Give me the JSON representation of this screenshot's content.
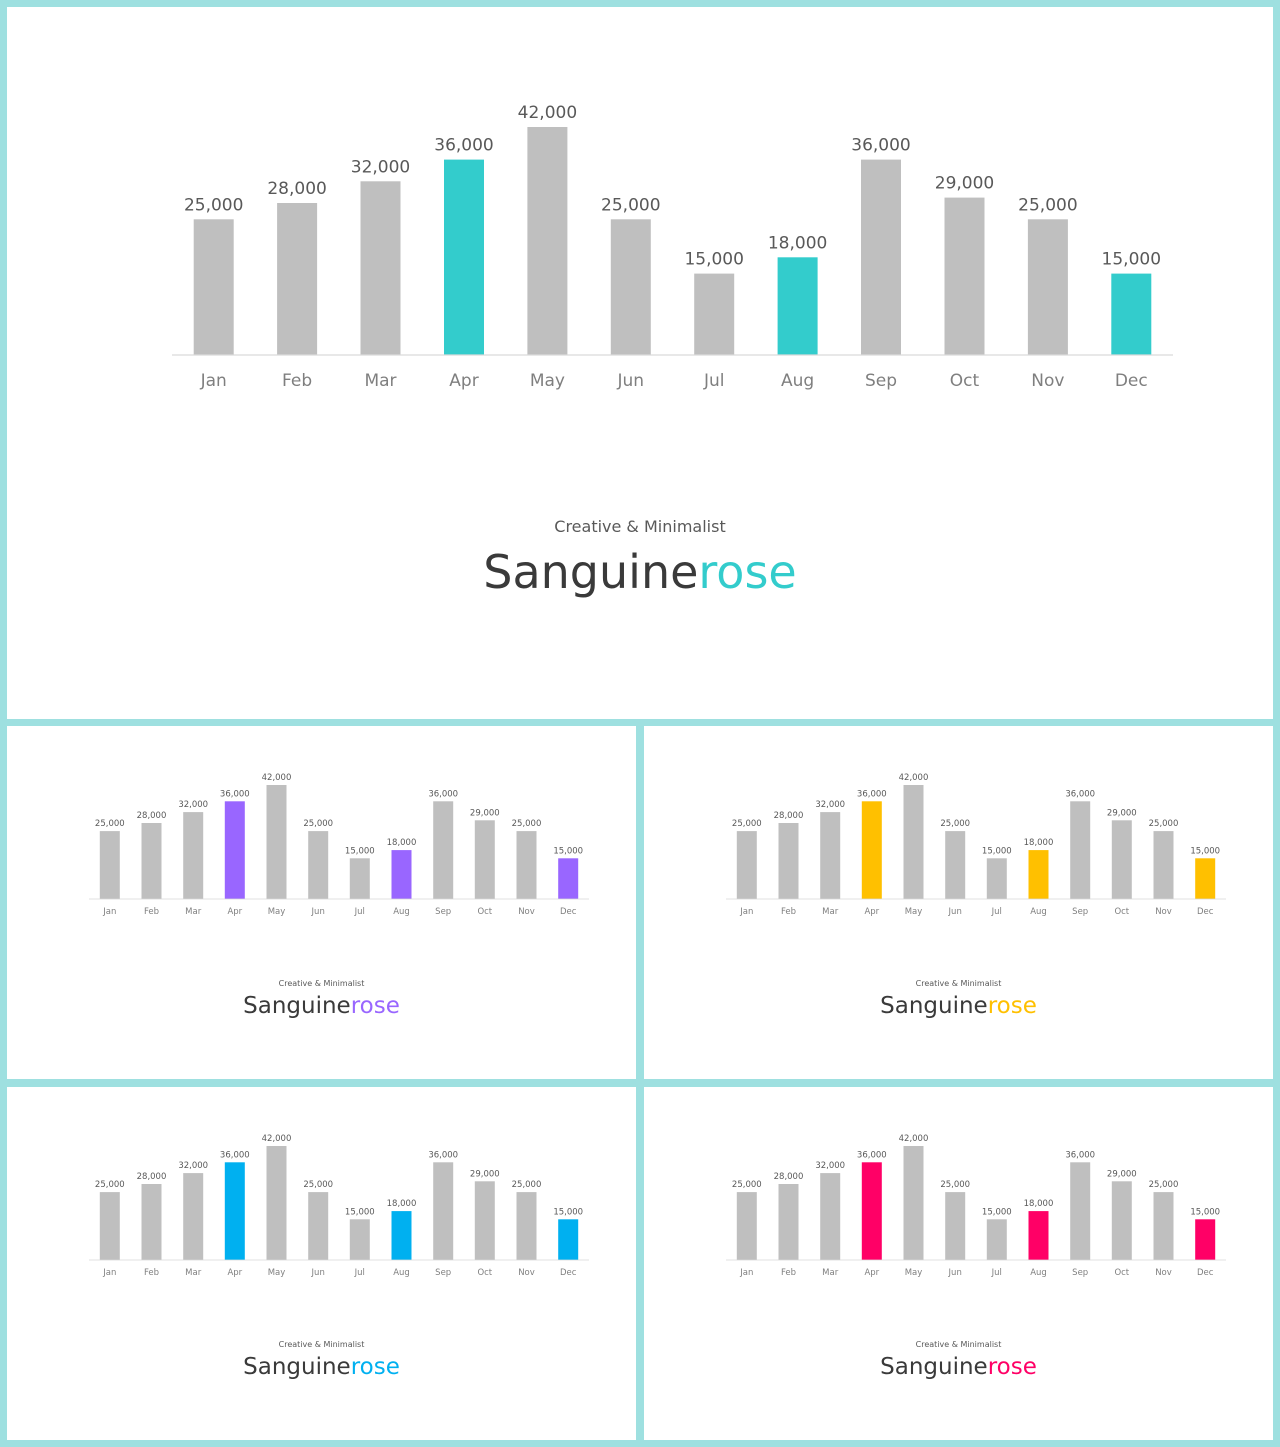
{
  "chart_data": {
    "type": "bar",
    "categories": [
      "Jan",
      "Feb",
      "Mar",
      "Apr",
      "May",
      "Jun",
      "Jul",
      "Aug",
      "Sep",
      "Oct",
      "Nov",
      "Dec"
    ],
    "values": [
      25000,
      28000,
      32000,
      36000,
      42000,
      25000,
      15000,
      18000,
      36000,
      29000,
      25000,
      15000
    ],
    "value_labels": [
      "25,000",
      "28,000",
      "32,000",
      "36,000",
      "42,000",
      "25,000",
      "15,000",
      "18,000",
      "36,000",
      "29,000",
      "25,000",
      "15,000"
    ],
    "highlighted_categories": [
      "Apr",
      "Aug",
      "Dec"
    ],
    "ylim": [
      0,
      42000
    ],
    "grid": false,
    "legend": "none",
    "base_bar_color": "#bfbfbf"
  },
  "slides": [
    {
      "caption": "Creative & Minimalist",
      "brand_main": "Sanguine",
      "brand_accent": "rose",
      "accent_color": "#33cccc"
    },
    {
      "caption": "Creative & Minimalist",
      "brand_main": "Sanguine",
      "brand_accent": "rose",
      "accent_color": "#9966ff"
    },
    {
      "caption": "Creative & Minimalist",
      "brand_main": "Sanguine",
      "brand_accent": "rose",
      "accent_color": "#ffc000"
    },
    {
      "caption": "Creative & Minimalist",
      "brand_main": "Sanguine",
      "brand_accent": "rose",
      "accent_color": "#00b0f0"
    },
    {
      "caption": "Creative & Minimalist",
      "brand_main": "Sanguine",
      "brand_accent": "rose",
      "accent_color": "#ff0066"
    }
  ]
}
